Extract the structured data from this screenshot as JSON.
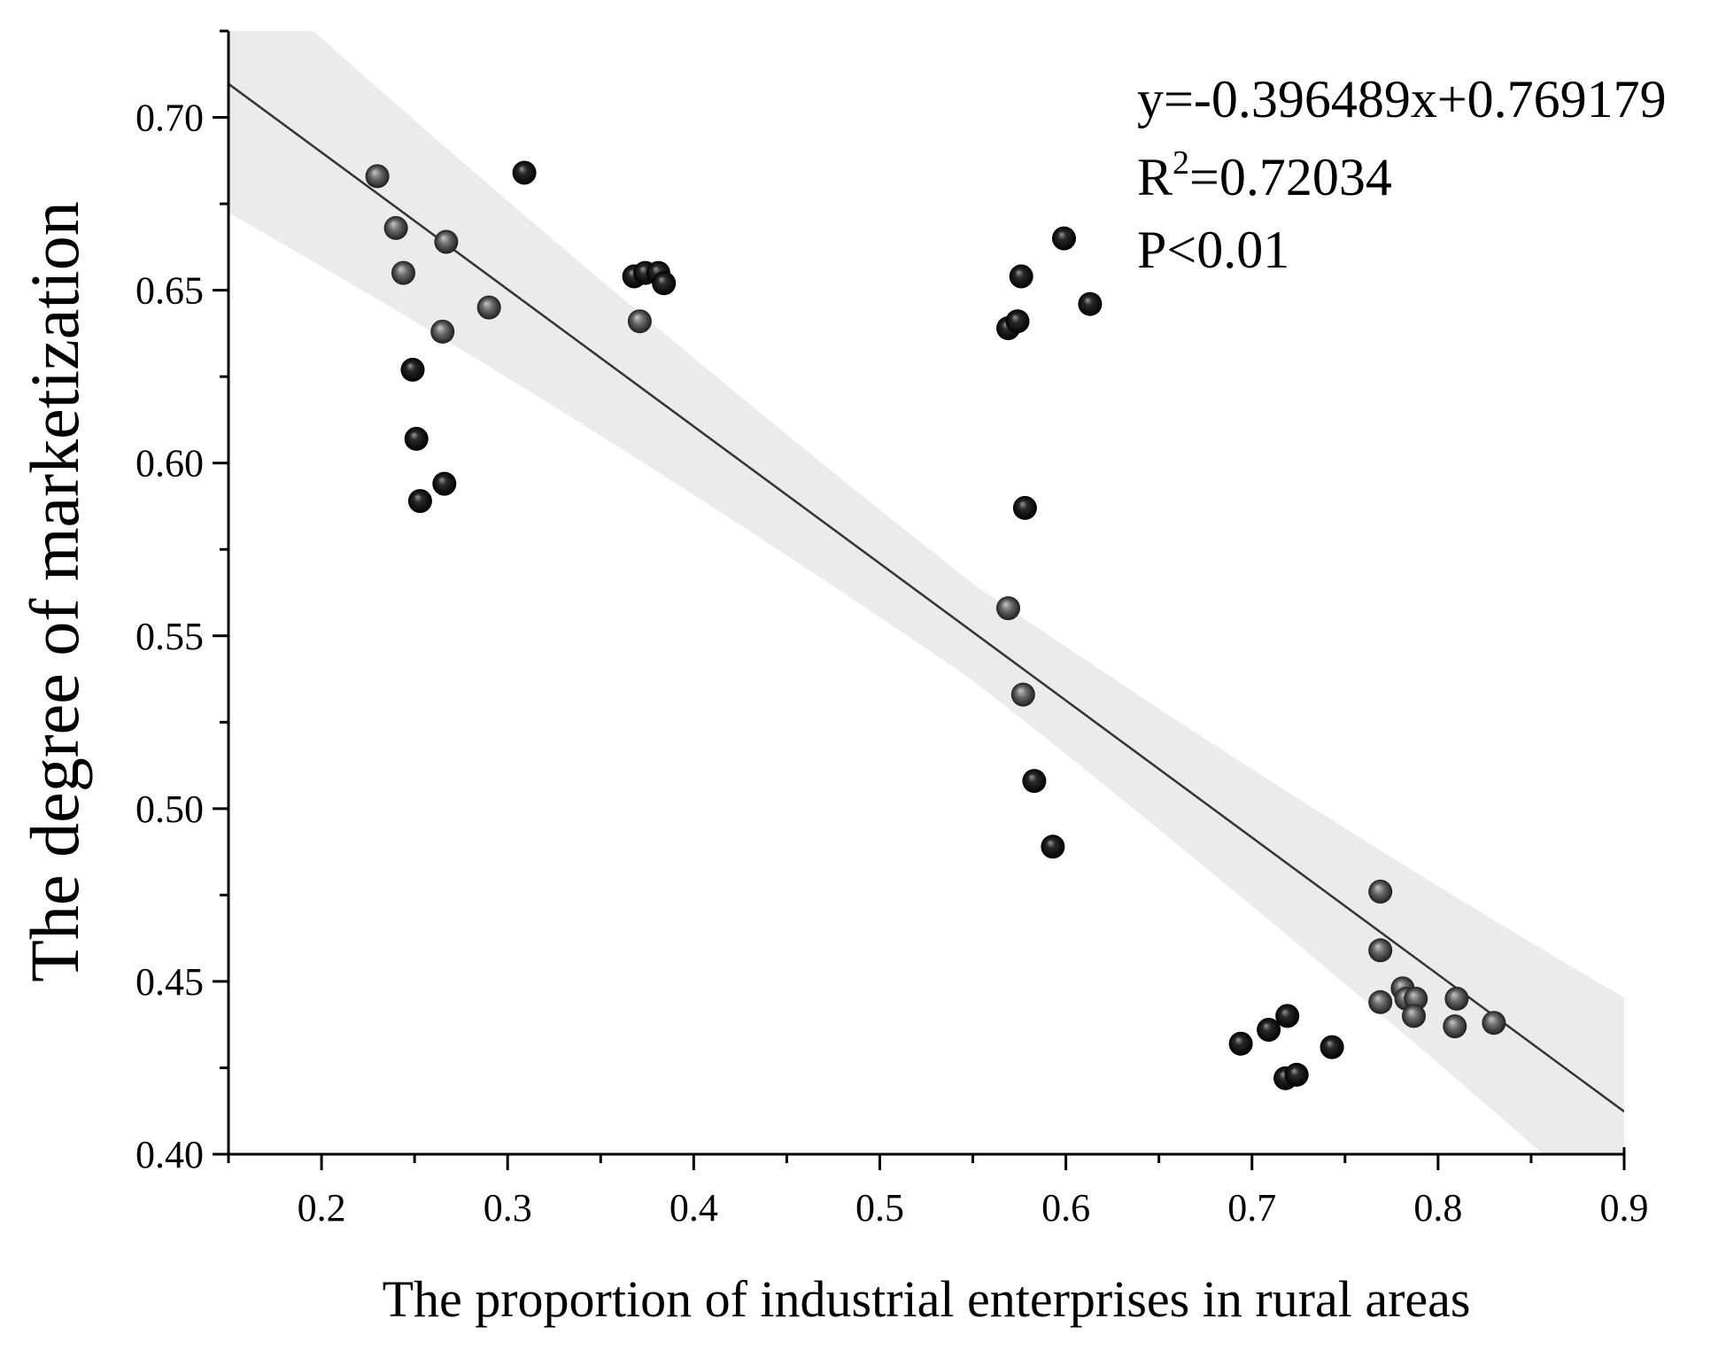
{
  "chart_data": {
    "type": "scatter",
    "title": "",
    "xlabel": "The proportion of industrial enterprises in rural areas",
    "ylabel": "The degree of marketization",
    "xlim": [
      0.15,
      0.9
    ],
    "ylim": [
      0.4,
      0.725
    ],
    "x_ticks": [
      0.2,
      0.3,
      0.4,
      0.5,
      0.6,
      0.7,
      0.8,
      0.9
    ],
    "x_tick_labels": [
      "0.2",
      "0.3",
      "0.4",
      "0.5",
      "0.6",
      "0.7",
      "0.8",
      "0.9"
    ],
    "y_ticks": [
      0.4,
      0.45,
      0.5,
      0.55,
      0.6,
      0.65,
      0.7
    ],
    "y_tick_labels": [
      "0.40",
      "0.45",
      "0.50",
      "0.55",
      "0.60",
      "0.65",
      "0.70"
    ],
    "grid": false,
    "fit": {
      "slope": -0.396489,
      "intercept": 0.769179,
      "equation": "y=-0.396489x+0.769179",
      "r2_prefix": "R",
      "r2_sup": "2",
      "r2_value": "=0.72034",
      "p_text": "P<0.01",
      "band_halfwidth_ends": 0.033,
      "band_halfwidth_center": 0.014,
      "band_center_x": 0.55
    },
    "series": [
      {
        "name": "dark",
        "color": "#111111",
        "points": [
          [
            0.309,
            0.684
          ],
          [
            0.249,
            0.627
          ],
          [
            0.251,
            0.607
          ],
          [
            0.253,
            0.589
          ],
          [
            0.266,
            0.594
          ],
          [
            0.368,
            0.654
          ],
          [
            0.374,
            0.655
          ],
          [
            0.381,
            0.655
          ],
          [
            0.384,
            0.652
          ],
          [
            0.569,
            0.639
          ],
          [
            0.574,
            0.641
          ],
          [
            0.576,
            0.654
          ],
          [
            0.599,
            0.665
          ],
          [
            0.613,
            0.646
          ],
          [
            0.578,
            0.587
          ],
          [
            0.583,
            0.508
          ],
          [
            0.593,
            0.489
          ],
          [
            0.694,
            0.432
          ],
          [
            0.709,
            0.436
          ],
          [
            0.719,
            0.44
          ],
          [
            0.718,
            0.422
          ],
          [
            0.724,
            0.423
          ],
          [
            0.743,
            0.431
          ]
        ]
      },
      {
        "name": "gray",
        "color": "#555555",
        "points": [
          [
            0.23,
            0.683
          ],
          [
            0.24,
            0.668
          ],
          [
            0.244,
            0.655
          ],
          [
            0.267,
            0.664
          ],
          [
            0.265,
            0.638
          ],
          [
            0.29,
            0.645
          ],
          [
            0.371,
            0.641
          ],
          [
            0.569,
            0.558
          ],
          [
            0.577,
            0.533
          ],
          [
            0.769,
            0.476
          ],
          [
            0.769,
            0.459
          ],
          [
            0.769,
            0.444
          ],
          [
            0.781,
            0.448
          ],
          [
            0.783,
            0.445
          ],
          [
            0.788,
            0.445
          ],
          [
            0.787,
            0.44
          ],
          [
            0.81,
            0.445
          ],
          [
            0.809,
            0.437
          ],
          [
            0.83,
            0.438
          ]
        ]
      }
    ]
  }
}
